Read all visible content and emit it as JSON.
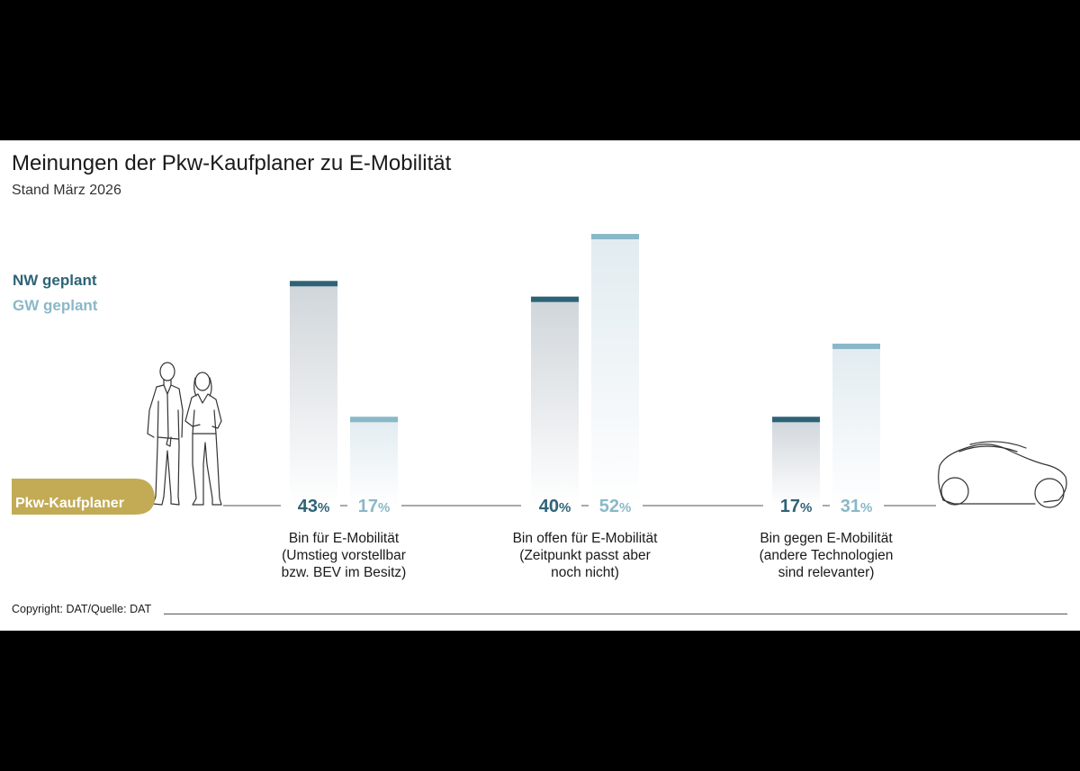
{
  "chart_data": {
    "type": "bar",
    "title": "Meinungen der Pkw-Kaufplaner zu E-Mobilität",
    "subtitle": "Stand März 2026",
    "group_label": "Pkw-Kaufplaner",
    "unit": "%",
    "categories": [
      [
        "Bin für E-Mobilität",
        "(Umstieg vorstellbar",
        "bzw. BEV im Besitz)"
      ],
      [
        "Bin offen für E-Mobilität",
        "(Zeitpunkt passt aber",
        "noch nicht)"
      ],
      [
        "Bin gegen E-Mobilität",
        "(andere Technologien",
        "sind relevanter)"
      ]
    ],
    "series": [
      {
        "name": "NW geplant",
        "color": "#2e6377",
        "values": [
          43,
          40,
          17
        ]
      },
      {
        "name": "GW geplant",
        "color": "#8ab8c8",
        "values": [
          17,
          52,
          31
        ]
      }
    ],
    "ylim": [
      0,
      52
    ],
    "legend_position": "left",
    "grid": false
  },
  "footer": {
    "copyright": "Copyright: DAT/Quelle: DAT"
  },
  "colors": {
    "badge": "#c3ab55",
    "axis": "#555555",
    "dark": "#2e6377",
    "light": "#8ab8c8"
  },
  "icons": {
    "people": "people-illustration",
    "car": "car-illustration"
  }
}
